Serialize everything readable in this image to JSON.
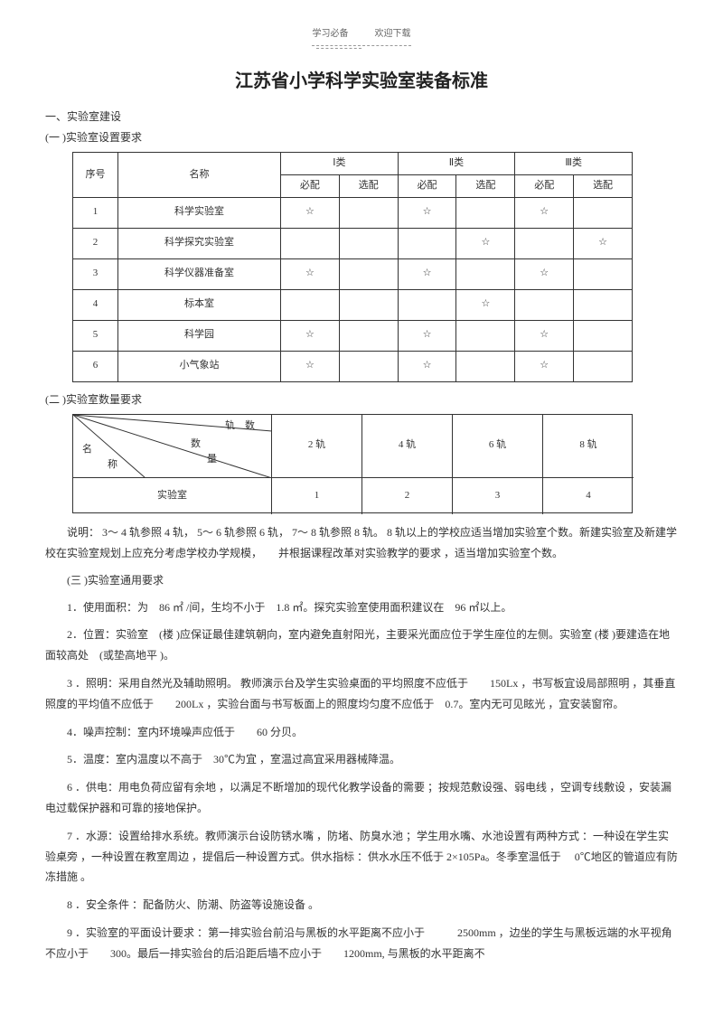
{
  "header": {
    "left": "学习必备",
    "right": "欢迎下载"
  },
  "title": "江苏省小学科学实验室装备标准",
  "s1": "一、实验室建设",
  "s1a": "(一 )实验室设置要求",
  "table1": {
    "head": {
      "c1": "序号",
      "c2": "名称",
      "g1": "Ⅰ类",
      "g2": "Ⅱ类",
      "g3": "Ⅲ类",
      "sub1": "必配",
      "sub2": "选配"
    },
    "rows": [
      {
        "n": "1",
        "name": "科学实验室",
        "a1": "☆",
        "a2": "",
        "b1": "☆",
        "b2": "",
        "c1": "☆",
        "c2": ""
      },
      {
        "n": "2",
        "name": "科学探究实验室",
        "a1": "",
        "a2": "",
        "b1": "",
        "b2": "☆",
        "c1": "",
        "c2": "☆"
      },
      {
        "n": "3",
        "name": "科学仪器准备室",
        "a1": "☆",
        "a2": "",
        "b1": "☆",
        "b2": "",
        "c1": "☆",
        "c2": ""
      },
      {
        "n": "4",
        "name": "标本室",
        "a1": "",
        "a2": "",
        "b1": "",
        "b2": "☆",
        "c1": "",
        "c2": ""
      },
      {
        "n": "5",
        "name": "科学园",
        "a1": "☆",
        "a2": "",
        "b1": "☆",
        "b2": "",
        "c1": "☆",
        "c2": ""
      },
      {
        "n": "6",
        "name": "小气象站",
        "a1": "☆",
        "a2": "",
        "b1": "☆",
        "b2": "",
        "c1": "☆",
        "c2": ""
      }
    ]
  },
  "s1b": "(二 )实验室数量要求",
  "table2": {
    "diag_top": "轨",
    "diag_topright": "数",
    "diag_mid": "数",
    "diag_mid2": "量",
    "diag_bot": "名",
    "diag_bot2": "称",
    "cols": [
      "2 轨",
      "4 轨",
      "6 轨",
      "8 轨"
    ],
    "rowlabel": "实验室",
    "vals": [
      "1",
      "2",
      "3",
      "4"
    ]
  },
  "p_explain": "说明： 3～ 4 轨参照 4 轨， 5～ 6 轨参照 6 轨， 7～ 8 轨参照 8 轨。 8 轨以上的学校应适当增加实验室个数。新建实验室及新建学校在实验室规划上应充分考虑学校办学规模，　　并根据课程改革对实验教学的要求 ，适当增加实验室个数。",
  "s1c": "(三 )实验室通用要求",
  "p1": "1．使用面积：为　86 ㎡ /间，生均不小于　1.8 ㎡。探究实验室使用面积建议在　96 ㎡以上。",
  "p2": "2．位置：实验室　(楼 )应保证最佳建筑朝向，室内避免直射阳光，主要采光面应位于学生座位的左侧。实验室 (楼 )要建造在地面较高处　(或垫高地平  )。",
  "p3": "3 ．照明：采用自然光及辅助照明。 教师演示台及学生实验桌面的平均照度不应低于　　150Lx ，书写板宜设局部照明 ，其垂直照度的平均值不应低于　　200Lx ，实验台面与书写板面上的照度均匀度不应低于　0.7。室内无可见眩光 ，宜安装窗帘。",
  "p4": "4．噪声控制：室内环境噪声应低于　　60 分贝。",
  "p5": "5．温度：室内温度以不高于　30℃为宜 ，室温过高宜采用器械降温。",
  "p6": "6 ．供电：用电负荷应留有余地 ，以满足不断增加的现代化教学设备的需要 ；按规范敷设强、弱电线 ，空调专线敷设 ，安装漏电过载保护器和可靠的接地保护。",
  "p7": "7 ．水源：设置给排水系统。教师演示台设防锈水嘴 ，防堵、防臭水池 ；学生用水嘴、水池设置有两种方式 ：一种设在学生实验桌旁 ，一种设置在教室周边 ，提倡后一种设置方式。供水指标 ：供水水压不低于  2×105Pa。冬季室温低于　 0℃地区的管道应有防冻措施 。",
  "p8": "8 ．安全条件 ：配备防火、防潮、防盗等设施设备 。",
  "p9": "9 ．实验室的平面设计要求 ：第一排实验台前沿与黑板的水平距离不应小于　　　2500mm ，边坐的学生与黑板远端的水平视角不应小于　　300。最后一排实验台的后沿距后墙不应小于　　1200mm, 与黑板的水平距离不"
}
